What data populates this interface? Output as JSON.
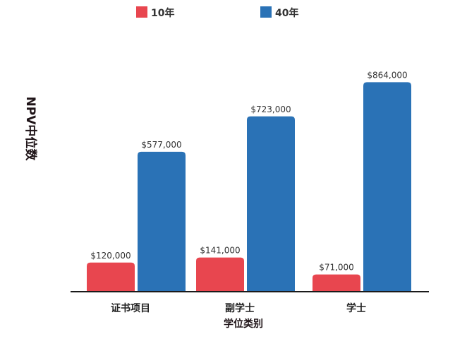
{
  "chart_data": {
    "type": "bar",
    "title": "",
    "xlabel": "学位类别",
    "ylabel": "NPV中位数",
    "categories": [
      "证书项目",
      "副学士",
      "学士"
    ],
    "series": [
      {
        "name": "10年",
        "color": "#e8464f",
        "values": [
          120000,
          141000,
          71000
        ],
        "labels": [
          "$120,000",
          "$141,000",
          "$71,000"
        ]
      },
      {
        "name": "40年",
        "color": "#2a72b6",
        "values": [
          577000,
          723000,
          864000
        ],
        "labels": [
          "$577,000",
          "$723,000",
          "$864,000"
        ]
      }
    ],
    "ylim": [
      0,
      900000
    ],
    "grid": false,
    "legend": "top"
  }
}
